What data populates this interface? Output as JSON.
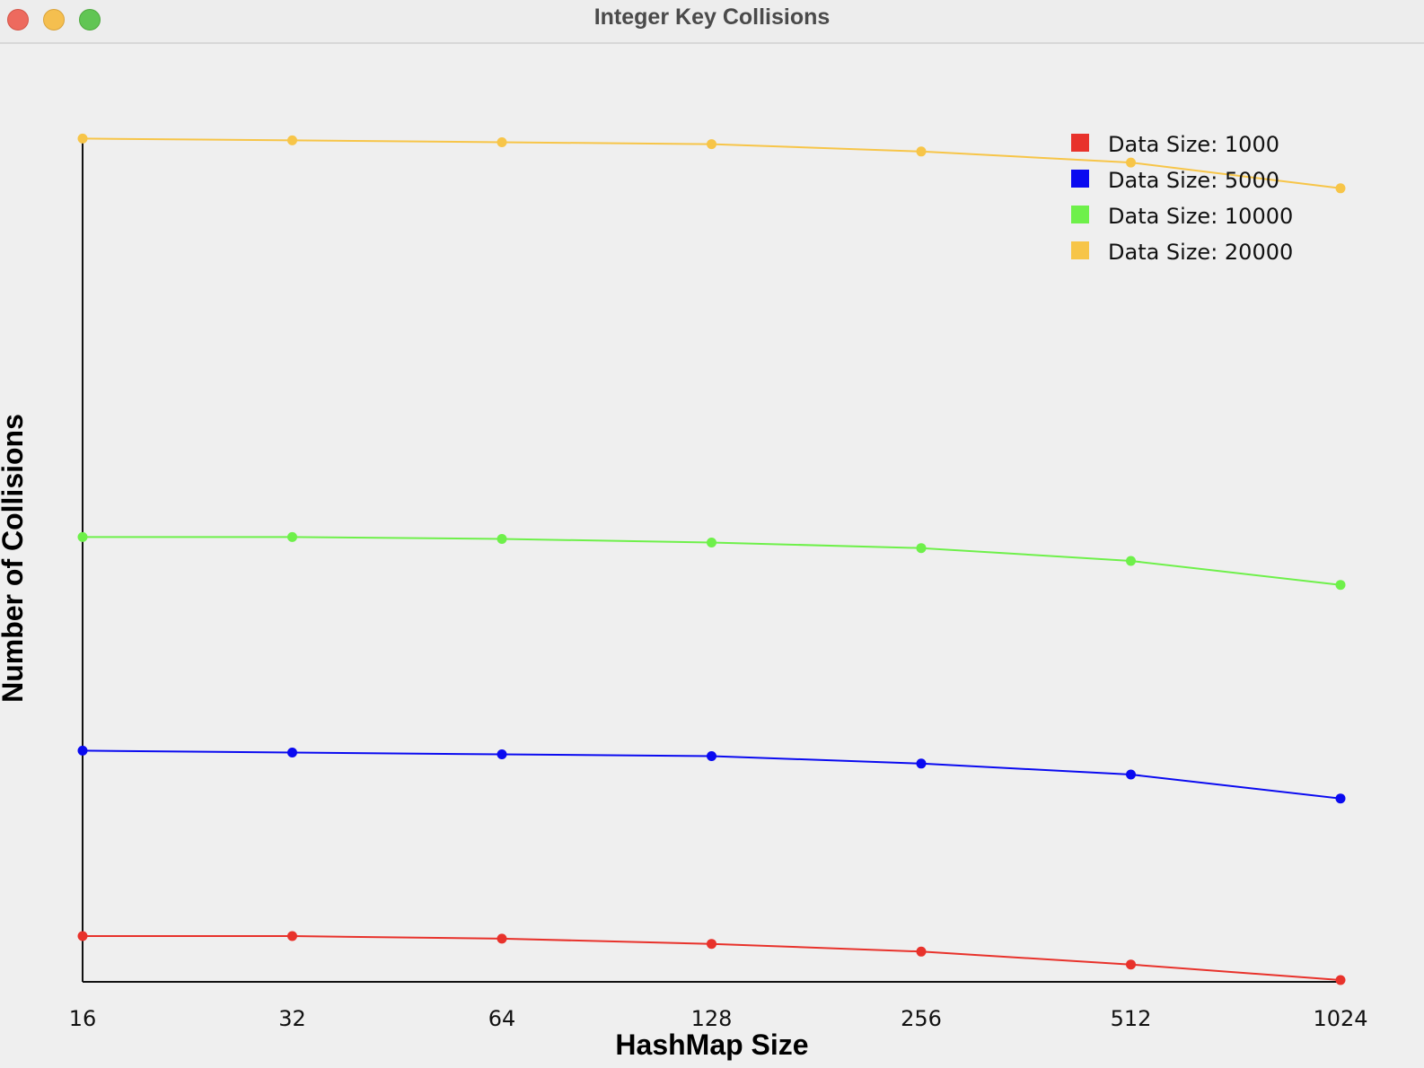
{
  "window": {
    "title": "Integer Key Collisions",
    "buttons": [
      "close",
      "minimize",
      "zoom"
    ]
  },
  "chart_data": {
    "type": "line",
    "title": "",
    "xlabel": "HashMap Size",
    "ylabel": "Number of Collisions",
    "x_scale": "log2",
    "categories": [
      "16",
      "32",
      "64",
      "128",
      "256",
      "512",
      "1024"
    ],
    "grid": false,
    "legend_position": "top-right",
    "series": [
      {
        "name": "Data Size: 1000",
        "color": "#e8322b",
        "values": [
          984,
          984,
          982,
          978,
          972,
          962,
          950
        ]
      },
      {
        "name": "Data Size: 5000",
        "color": "#0a0af0",
        "values": [
          4984,
          4982,
          4980,
          4978,
          4970,
          4958,
          4932
        ]
      },
      {
        "name": "Data Size: 10000",
        "color": "#6ef04a",
        "values": [
          9984,
          9984,
          9982,
          9978,
          9972,
          9958,
          9932
        ]
      },
      {
        "name": "Data Size: 20000",
        "color": "#f7c548",
        "values": [
          19984,
          19982,
          19980,
          19978,
          19970,
          19958,
          19930
        ]
      }
    ]
  }
}
